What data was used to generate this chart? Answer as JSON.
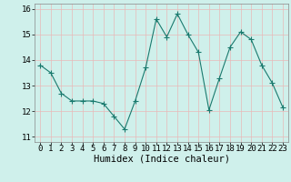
{
  "x": [
    0,
    1,
    2,
    3,
    4,
    5,
    6,
    7,
    8,
    9,
    10,
    11,
    12,
    13,
    14,
    15,
    16,
    17,
    18,
    19,
    20,
    21,
    22,
    23
  ],
  "y": [
    13.8,
    13.5,
    12.7,
    12.4,
    12.4,
    12.4,
    12.3,
    11.8,
    11.3,
    12.4,
    13.7,
    15.6,
    14.9,
    15.8,
    15.0,
    14.3,
    12.05,
    13.3,
    14.5,
    15.1,
    14.8,
    13.8,
    13.1,
    12.15
  ],
  "line_color": "#1a7a6e",
  "marker": "+",
  "marker_size": 4,
  "bg_color": "#cff0eb",
  "grid_color": "#e8b8b8",
  "xlabel": "Humidex (Indice chaleur)",
  "xlim": [
    -0.5,
    23.5
  ],
  "ylim": [
    10.8,
    16.2
  ],
  "yticks": [
    11,
    12,
    13,
    14,
    15,
    16
  ],
  "xticks": [
    0,
    1,
    2,
    3,
    4,
    5,
    6,
    7,
    8,
    9,
    10,
    11,
    12,
    13,
    14,
    15,
    16,
    17,
    18,
    19,
    20,
    21,
    22,
    23
  ],
  "xlabel_fontsize": 7.5,
  "tick_fontsize": 6.5,
  "spine_color": "#888888"
}
